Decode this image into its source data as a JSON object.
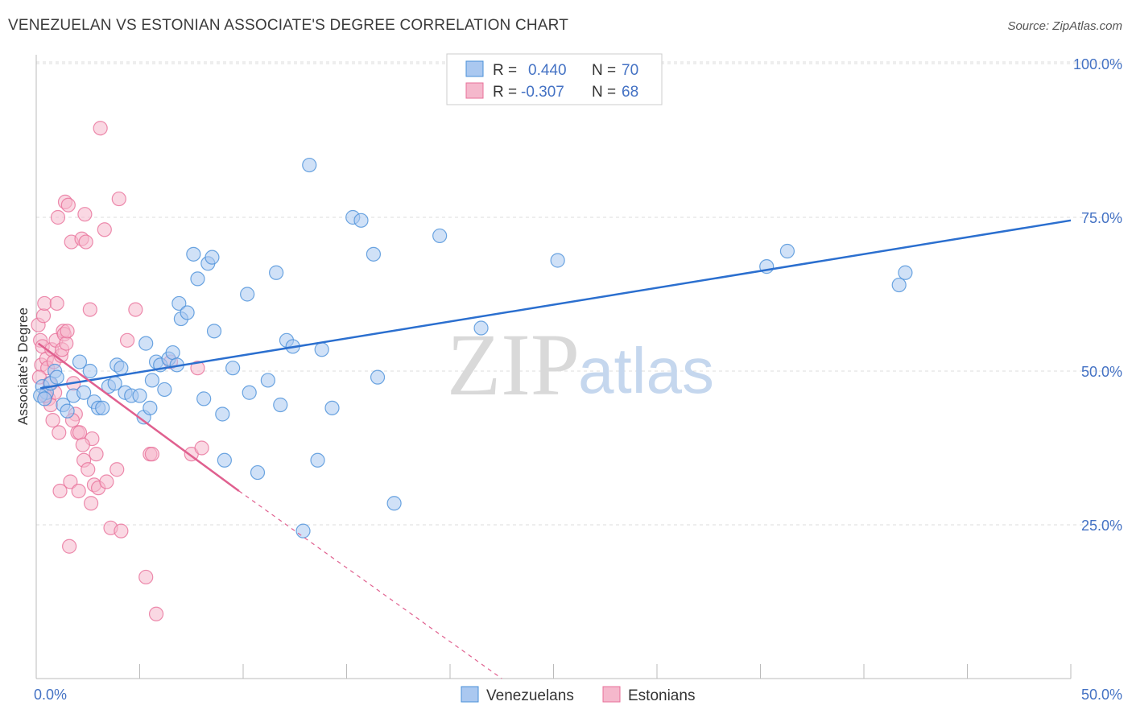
{
  "title": "VENEZUELAN VS ESTONIAN ASSOCIATE'S DEGREE CORRELATION CHART",
  "source": "Source: ZipAtlas.com",
  "watermark": {
    "zip": "ZIP",
    "atlas": "atlas"
  },
  "colors": {
    "blue": "#4a90d9",
    "blue_fill": "#aac8f0",
    "blue_line": "#2b6fcf",
    "pink": "#e8709a",
    "pink_fill": "#f5b8cc",
    "pink_line": "#e0608f",
    "grid": "#dddddd",
    "label": "#4472c4"
  },
  "legend": {
    "rows": [
      {
        "r_label": "R = ",
        "r_value": "0.440",
        "n_label": "N = ",
        "n_value": "70"
      },
      {
        "r_label": "R = ",
        "r_value": "-0.307",
        "n_label": "N = ",
        "n_value": "68"
      }
    ]
  },
  "bottom_legend": [
    "Venezuelans",
    "Estonians"
  ],
  "chart_data": {
    "type": "scatter",
    "title": "VENEZUELAN VS ESTONIAN ASSOCIATE'S DEGREE CORRELATION CHART",
    "xlabel": "",
    "ylabel": "Associate's Degree",
    "xlim": [
      0,
      50
    ],
    "ylim": [
      0,
      105
    ],
    "x_tick_labels": [
      "0.0%",
      "50.0%"
    ],
    "y_ticks": [
      25,
      50,
      75,
      100
    ],
    "y_tick_labels": [
      "25.0%",
      "50.0%",
      "75.0%",
      "100.0%"
    ],
    "grid": true,
    "series": [
      {
        "name": "Venezuelans",
        "trend": {
          "x": [
            0.2,
            50
          ],
          "y": [
            47.2,
            74.5
          ],
          "style": "solid"
        },
        "points": [
          [
            0.3,
            47.5
          ],
          [
            0.5,
            46.5
          ],
          [
            0.7,
            48
          ],
          [
            0.9,
            50
          ],
          [
            1,
            49
          ],
          [
            1.3,
            44.5
          ],
          [
            1.5,
            43.5
          ],
          [
            1.8,
            46
          ],
          [
            2.1,
            51.5
          ],
          [
            2.3,
            46.5
          ],
          [
            2.6,
            50
          ],
          [
            2.8,
            45
          ],
          [
            3,
            44
          ],
          [
            3.2,
            44
          ],
          [
            3.5,
            47.5
          ],
          [
            3.8,
            48
          ],
          [
            3.9,
            51
          ],
          [
            4.1,
            50.5
          ],
          [
            4.3,
            46.5
          ],
          [
            4.6,
            46
          ],
          [
            5,
            46
          ],
          [
            5.2,
            42.5
          ],
          [
            5.3,
            54.5
          ],
          [
            5.5,
            44
          ],
          [
            5.6,
            48.5
          ],
          [
            5.8,
            51.5
          ],
          [
            6,
            51
          ],
          [
            6.2,
            47
          ],
          [
            6.4,
            52
          ],
          [
            6.6,
            53
          ],
          [
            6.8,
            51
          ],
          [
            6.9,
            61
          ],
          [
            7,
            58.5
          ],
          [
            7.3,
            59.5
          ],
          [
            7.6,
            69
          ],
          [
            7.8,
            65
          ],
          [
            8.1,
            45.5
          ],
          [
            8.3,
            67.5
          ],
          [
            8.5,
            68.5
          ],
          [
            8.6,
            56.5
          ],
          [
            9,
            43
          ],
          [
            9.1,
            35.5
          ],
          [
            9.5,
            50.5
          ],
          [
            10.2,
            62.5
          ],
          [
            10.3,
            46.5
          ],
          [
            10.7,
            33.5
          ],
          [
            11.2,
            48.5
          ],
          [
            11.6,
            66
          ],
          [
            11.8,
            44.5
          ],
          [
            12.1,
            55
          ],
          [
            12.4,
            54
          ],
          [
            12.9,
            24
          ],
          [
            13.2,
            83.5
          ],
          [
            13.6,
            35.5
          ],
          [
            13.8,
            53.5
          ],
          [
            14.3,
            44
          ],
          [
            15.3,
            75
          ],
          [
            15.7,
            74.5
          ],
          [
            16.3,
            69
          ],
          [
            16.5,
            49
          ],
          [
            17.3,
            28.5
          ],
          [
            19.5,
            72
          ],
          [
            21.5,
            57
          ],
          [
            25.2,
            68
          ],
          [
            35.3,
            67
          ],
          [
            36.3,
            69.5
          ],
          [
            41.7,
            64
          ],
          [
            42,
            66
          ],
          [
            0.2,
            46
          ],
          [
            0.4,
            45.5
          ]
        ]
      },
      {
        "name": "Estonians",
        "trend": {
          "x": [
            0.1,
            9.8
          ],
          "y": [
            54.5,
            30.5
          ],
          "style": "solid",
          "dashed_to": {
            "x": 22.5,
            "y": 0
          }
        },
        "points": [
          [
            0.1,
            57.5
          ],
          [
            0.2,
            55
          ],
          [
            0.25,
            51
          ],
          [
            0.3,
            54
          ],
          [
            0.35,
            59
          ],
          [
            0.4,
            61
          ],
          [
            0.5,
            52
          ],
          [
            0.55,
            50.5
          ],
          [
            0.6,
            45.5
          ],
          [
            0.7,
            44.5
          ],
          [
            0.75,
            53.5
          ],
          [
            0.8,
            42
          ],
          [
            0.85,
            51.5
          ],
          [
            0.9,
            46.5
          ],
          [
            0.95,
            55
          ],
          [
            1,
            61
          ],
          [
            1.05,
            75
          ],
          [
            1.1,
            40
          ],
          [
            1.15,
            30.5
          ],
          [
            1.2,
            52.5
          ],
          [
            1.25,
            53.5
          ],
          [
            1.3,
            56.5
          ],
          [
            1.35,
            56
          ],
          [
            1.4,
            77.5
          ],
          [
            1.45,
            54.5
          ],
          [
            1.5,
            56.5
          ],
          [
            1.55,
            77
          ],
          [
            1.6,
            21.5
          ],
          [
            1.65,
            32
          ],
          [
            1.7,
            71
          ],
          [
            1.8,
            48
          ],
          [
            1.9,
            43
          ],
          [
            2,
            40
          ],
          [
            2.05,
            30.5
          ],
          [
            2.1,
            40
          ],
          [
            2.2,
            71.5
          ],
          [
            2.3,
            35.5
          ],
          [
            2.35,
            75.5
          ],
          [
            2.4,
            71
          ],
          [
            2.5,
            34
          ],
          [
            2.6,
            60
          ],
          [
            2.65,
            28.5
          ],
          [
            2.7,
            39
          ],
          [
            2.8,
            31.5
          ],
          [
            2.9,
            36.5
          ],
          [
            3,
            31
          ],
          [
            3.1,
            89.5
          ],
          [
            3.3,
            73
          ],
          [
            3.6,
            24.5
          ],
          [
            3.9,
            34
          ],
          [
            4,
            78
          ],
          [
            4.1,
            24
          ],
          [
            4.4,
            55
          ],
          [
            4.8,
            60
          ],
          [
            5.3,
            16.5
          ],
          [
            5.5,
            36.5
          ],
          [
            5.6,
            36.5
          ],
          [
            5.8,
            10.5
          ],
          [
            6.5,
            51.5
          ],
          [
            7.5,
            36.5
          ],
          [
            8,
            37.5
          ],
          [
            7.8,
            50.5
          ],
          [
            0.15,
            49
          ],
          [
            0.45,
            46
          ],
          [
            0.65,
            48
          ],
          [
            1.75,
            42
          ],
          [
            2.25,
            38
          ],
          [
            3.4,
            32
          ]
        ]
      }
    ],
    "legend_position": "top-center"
  }
}
